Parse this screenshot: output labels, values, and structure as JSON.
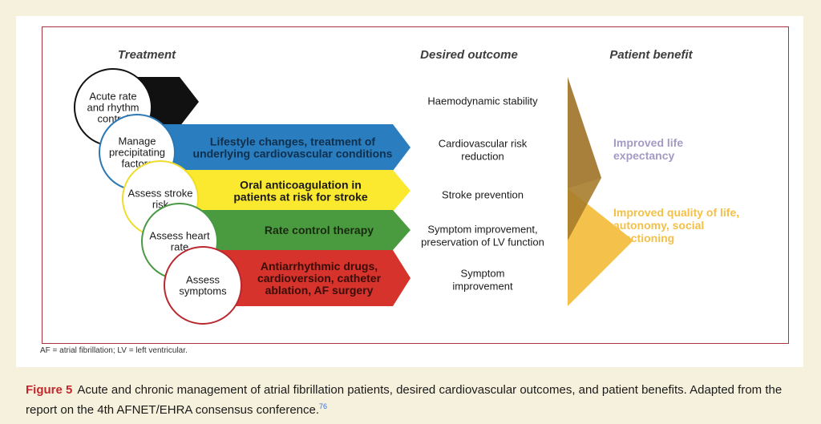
{
  "diagram": {
    "headers": {
      "treatment": "Treatment",
      "outcome": "Desired outcome",
      "benefit": "Patient benefit"
    },
    "circles": [
      {
        "lines": [
          "Acute rate",
          "and rhythm",
          "control"
        ],
        "color": "#111111"
      },
      {
        "lines": [
          "Manage",
          "precipitating",
          "factors"
        ],
        "color": "#2b78b6"
      },
      {
        "lines": [
          "Assess stroke",
          "risk"
        ],
        "color": "#f0dc2c"
      },
      {
        "lines": [
          "Assess heart",
          "rate"
        ],
        "color": "#4a9a45"
      },
      {
        "lines": [
          "Assess",
          "symptoms"
        ],
        "color": "#b9282e"
      }
    ],
    "arrows": [
      {
        "lines": [],
        "color": "#111111"
      },
      {
        "lines": [
          "Lifestyle changes, treatment of",
          "underlying cardiovascular conditions"
        ],
        "color": "#2a7dbf",
        "text_color": "#10304d"
      },
      {
        "lines": [
          "Oral anticoagulation in",
          "patients at risk for stroke"
        ],
        "color": "#fbe92f",
        "text_color": "#1a1a1a"
      },
      {
        "lines": [
          "Rate control therapy"
        ],
        "color": "#4a9b3f",
        "text_color": "#1a2a10"
      },
      {
        "lines": [
          "Antiarrhythmic drugs,",
          "cardioversion, catheter",
          "ablation, AF surgery"
        ],
        "color": "#d5332b",
        "text_color": "#3a0d0a"
      }
    ],
    "outcomes": [
      [
        "Haemodynamic stability"
      ],
      [
        "Cardiovascular risk",
        "reduction"
      ],
      [
        "Stroke prevention"
      ],
      [
        "Symptom improvement,",
        "preservation of LV function"
      ],
      [
        "Symptom",
        "improvement"
      ]
    ],
    "benefits": [
      {
        "lines": [
          "Improved life",
          "expectancy"
        ],
        "color": "#a59ac4"
      },
      {
        "lines": [
          "Improved quality of life,",
          "autonomy, social",
          "functioning"
        ],
        "color": "#f3c049"
      }
    ],
    "triangle_colors": {
      "top": "#9f97c6",
      "bottom": "#f4c24a",
      "overlap": "#a87d2c"
    }
  },
  "footnote": "AF = atrial fibrillation; LV = left ventricular.",
  "caption": {
    "label": "Figure 5",
    "text": "Acute and chronic management of atrial fibrillation patients, desired cardiovascular outcomes, and patient benefits. Adapted from the report on the 4th AFNET/EHRA consensus conference.",
    "ref": "76"
  }
}
